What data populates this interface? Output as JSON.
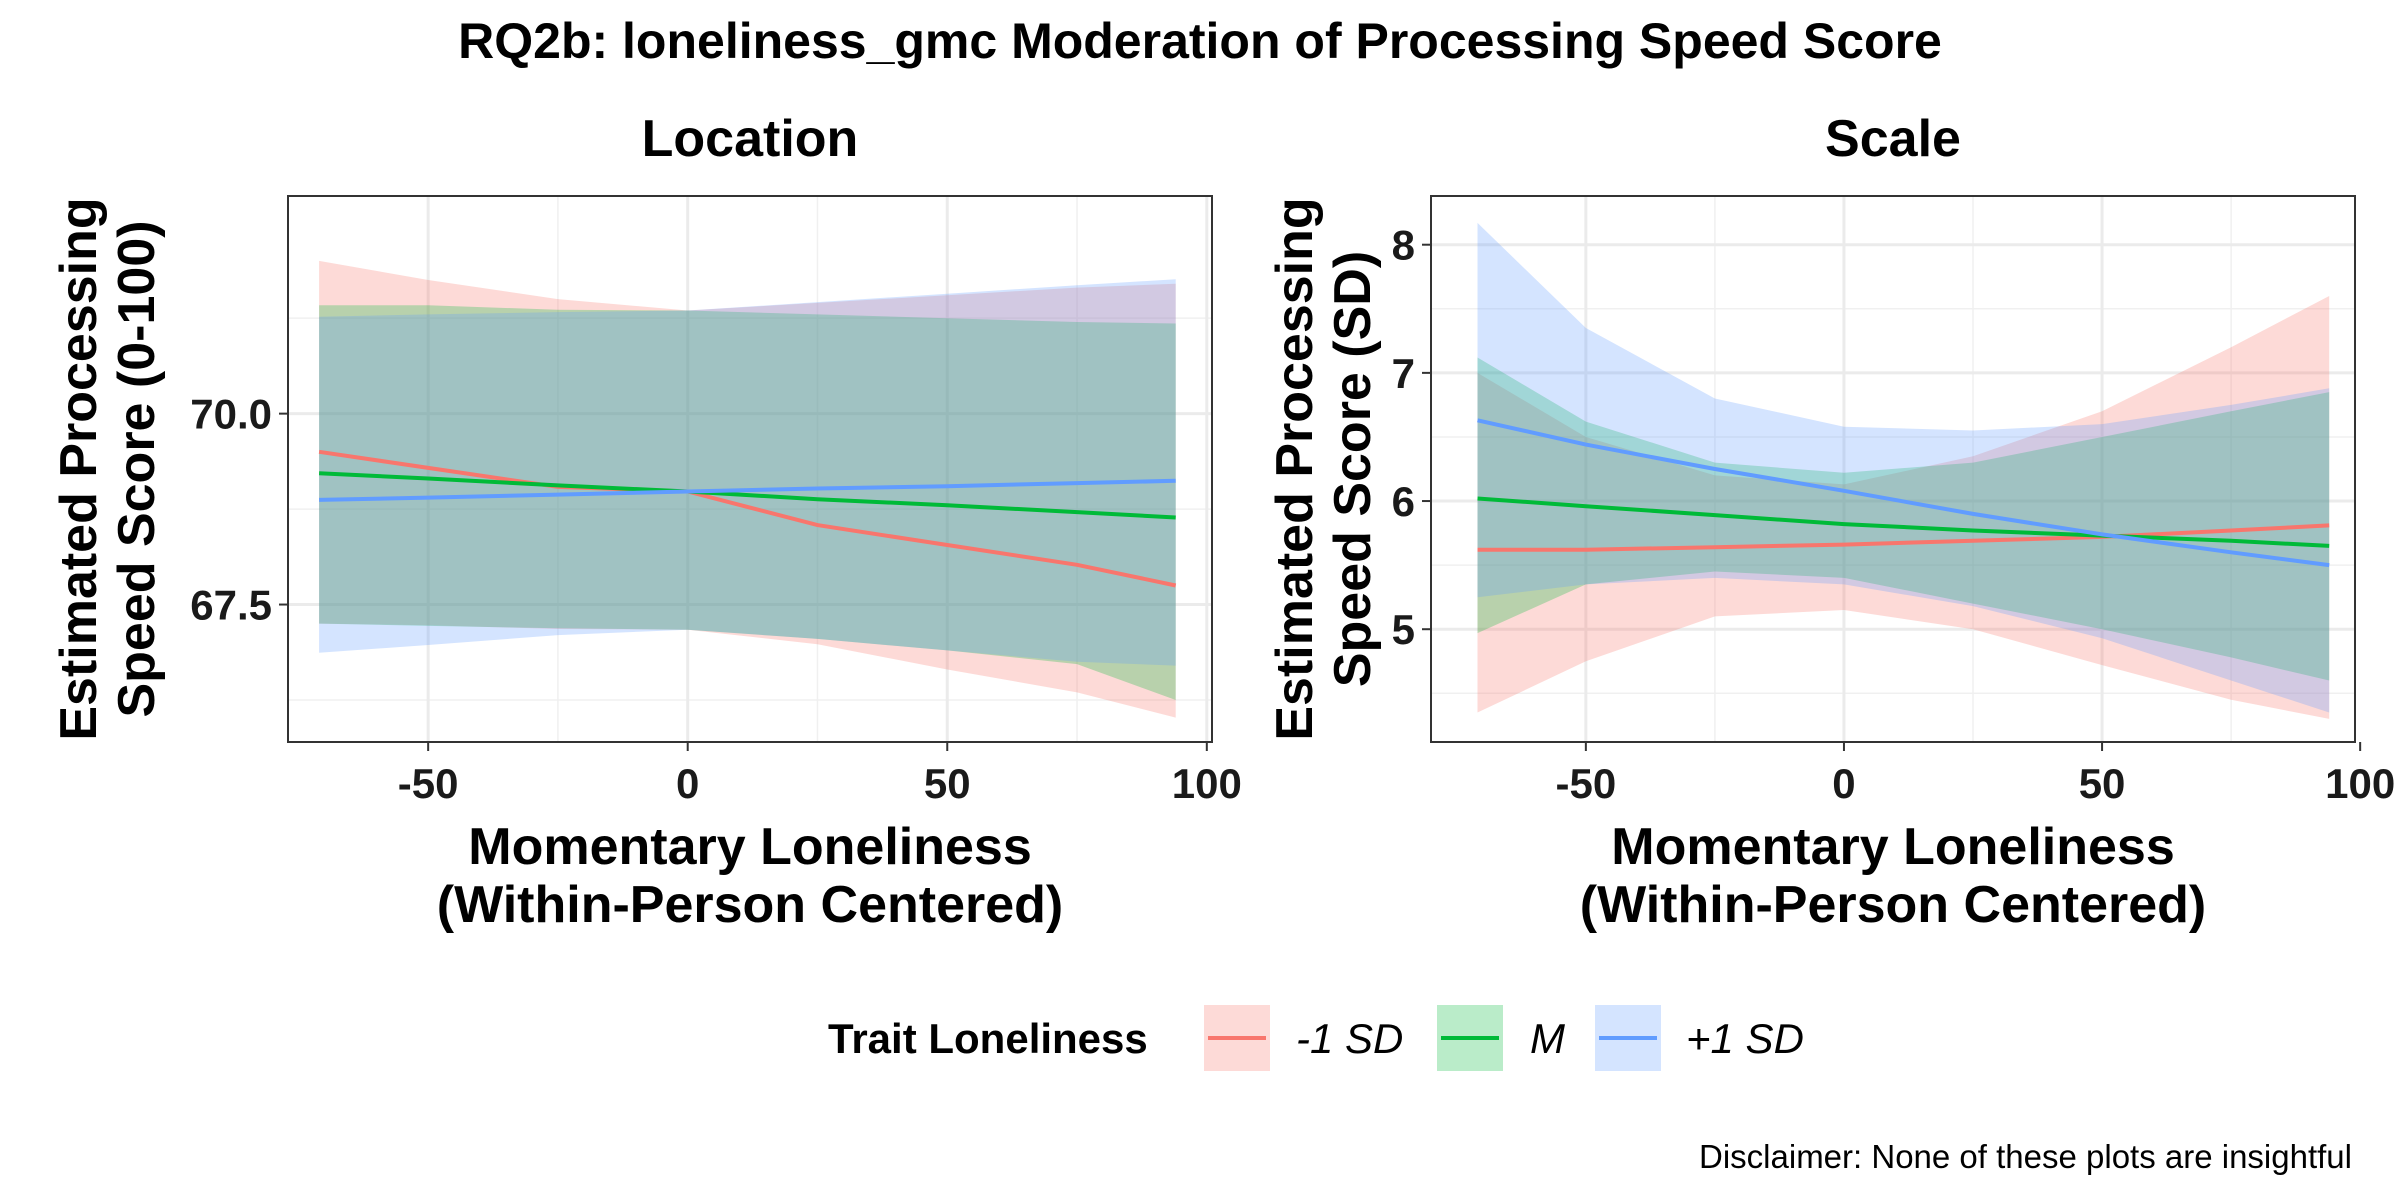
{
  "chart_data": {
    "type": "line",
    "title": "RQ2b: loneliness_gmc Moderation of Processing Speed Score",
    "caption": "Disclaimer: None of these plots are insightful",
    "legend": {
      "title": "Trait Loneliness",
      "position": "bottom",
      "entries": [
        {
          "label": "-1 SD",
          "color": "#F8766D"
        },
        {
          "label": "M",
          "color": "#00BA38"
        },
        {
          "label": "+1 SD",
          "color": "#619CFF"
        }
      ]
    },
    "panels": [
      {
        "title": "Location",
        "xlabel": "Momentary Loneliness (Within-Person Centered)",
        "ylabel": "Estimated Processing Speed Score (0-100)",
        "xlim": [
          -77,
          101
        ],
        "ylim": [
          65.7,
          72.85
        ],
        "x_ticks": [
          -50,
          0,
          50,
          100
        ],
        "y_ticks": [
          67.5,
          70.0
        ],
        "y_tick_labels": [
          "67.5",
          "70.0"
        ],
        "grid": true,
        "x": [
          -71,
          -50,
          -25,
          0,
          25,
          50,
          75,
          94
        ],
        "series": [
          {
            "name": "-1 SD",
            "color": "#F8766D",
            "values": [
              69.5,
              69.29,
              69.04,
              68.98,
              68.54,
              68.28,
              68.02,
              67.75
            ],
            "lower": [
              67.25,
              67.23,
              67.18,
              67.17,
              66.98,
              66.65,
              66.35,
              66.02
            ],
            "upper": [
              72.0,
              71.75,
              71.5,
              71.35,
              71.45,
              71.55,
              71.65,
              71.7
            ]
          },
          {
            "name": "M",
            "color": "#00BA38",
            "values": [
              69.22,
              69.15,
              69.06,
              68.98,
              68.88,
              68.8,
              68.71,
              68.64
            ],
            "lower": [
              67.25,
              67.22,
              67.19,
              67.17,
              67.05,
              66.9,
              66.72,
              66.25
            ],
            "upper": [
              71.42,
              71.42,
              71.36,
              71.35,
              71.3,
              71.25,
              71.2,
              71.18
            ]
          },
          {
            "name": "+1 SD",
            "color": "#619CFF",
            "values": [
              68.87,
              68.9,
              68.94,
              68.98,
              69.02,
              69.05,
              69.09,
              69.12
            ],
            "lower": [
              66.87,
              66.97,
              67.1,
              67.17,
              67.05,
              66.9,
              66.75,
              66.7
            ],
            "upper": [
              71.27,
              71.3,
              71.33,
              71.35,
              71.46,
              71.57,
              71.68,
              71.76
            ]
          }
        ]
      },
      {
        "title": "Scale",
        "xlabel": "Momentary Loneliness (Within-Person Centered)",
        "ylabel": "Estimated Processing Speed Score (SD)",
        "xlim": [
          -80,
          99
        ],
        "ylim": [
          4.12,
          8.38
        ],
        "x_ticks": [
          -50,
          0,
          50,
          100
        ],
        "y_ticks": [
          5,
          6,
          7,
          8
        ],
        "y_tick_labels": [
          "5",
          "6",
          "7",
          "8"
        ],
        "grid": true,
        "x": [
          -71,
          -50,
          -25,
          0,
          25,
          50,
          75,
          94
        ],
        "series": [
          {
            "name": "-1 SD",
            "color": "#F8766D",
            "values": [
              5.62,
              5.62,
              5.64,
              5.66,
              5.69,
              5.72,
              5.77,
              5.81
            ],
            "lower": [
              4.35,
              4.75,
              5.1,
              5.15,
              5.0,
              4.72,
              4.45,
              4.3
            ],
            "upper": [
              7.0,
              6.5,
              6.2,
              6.13,
              6.35,
              6.7,
              7.2,
              7.6
            ]
          },
          {
            "name": "M",
            "color": "#00BA38",
            "values": [
              6.02,
              5.96,
              5.89,
              5.82,
              5.77,
              5.73,
              5.69,
              5.65
            ],
            "lower": [
              4.97,
              5.35,
              5.45,
              5.4,
              5.2,
              5.0,
              4.78,
              4.6
            ],
            "upper": [
              7.12,
              6.62,
              6.3,
              6.22,
              6.3,
              6.5,
              6.7,
              6.85
            ]
          },
          {
            "name": "+1 SD",
            "color": "#619CFF",
            "values": [
              6.63,
              6.44,
              6.25,
              6.08,
              5.9,
              5.74,
              5.6,
              5.5
            ],
            "lower": [
              5.25,
              5.35,
              5.4,
              5.35,
              5.18,
              4.93,
              4.6,
              4.35
            ],
            "upper": [
              8.17,
              7.35,
              6.8,
              6.58,
              6.55,
              6.6,
              6.75,
              6.88
            ]
          }
        ]
      }
    ]
  }
}
